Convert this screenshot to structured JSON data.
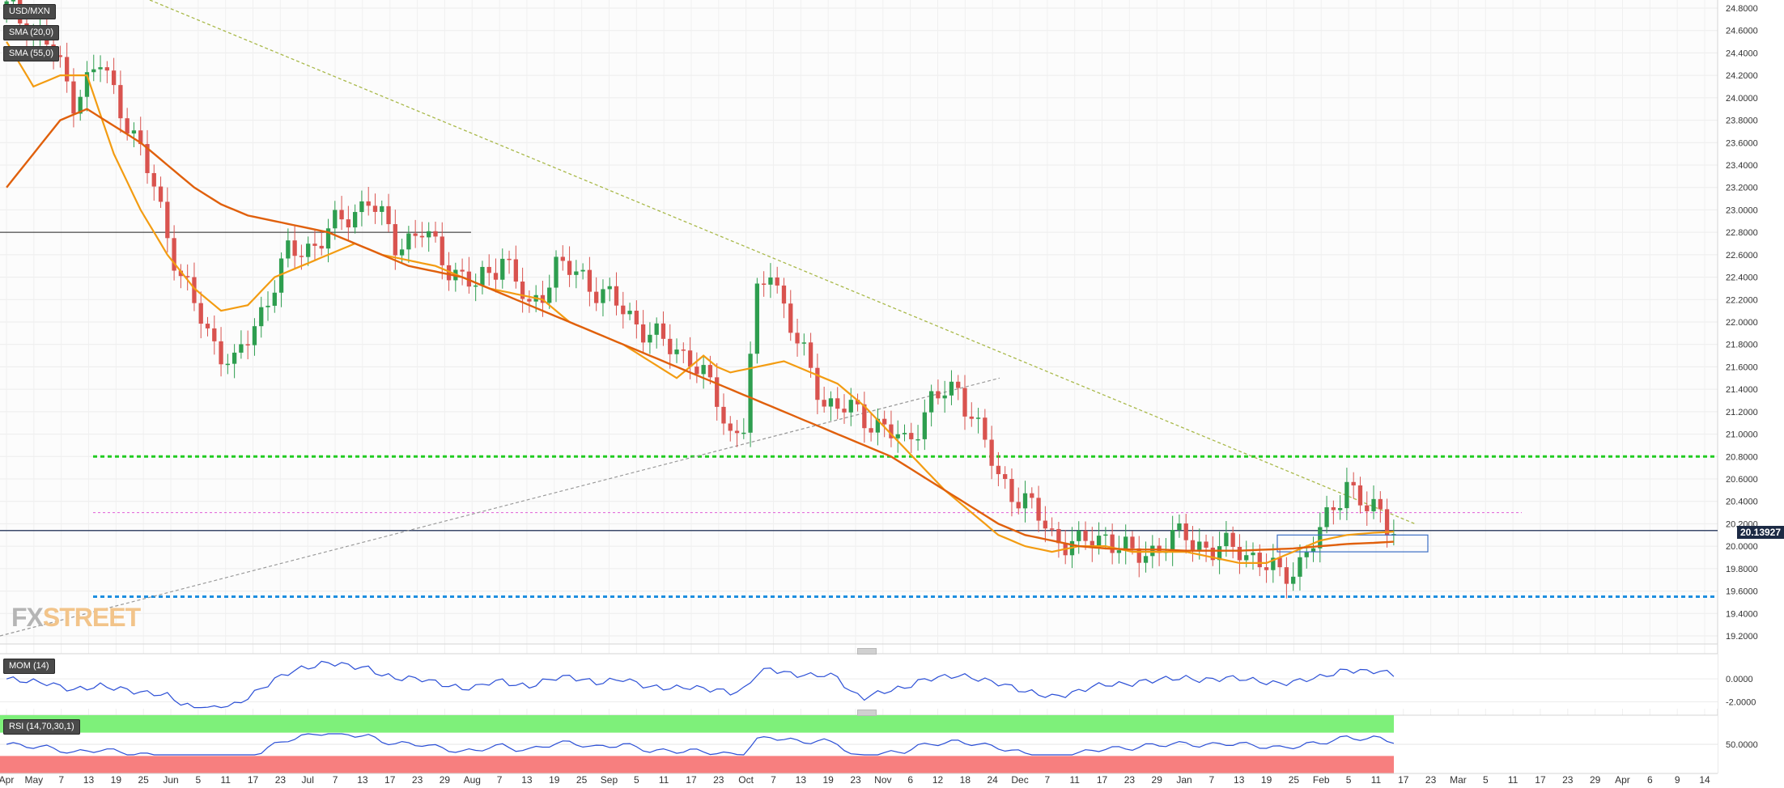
{
  "legend": {
    "symbol": "USD/MXN",
    "sma_fast": "SMA (20,0)",
    "sma_slow": "SMA (55,0)",
    "mom": "MOM (14)",
    "rsi": "RSI (14,70,30,1)"
  },
  "logo": {
    "part1": "FX",
    "part2": "STREET"
  },
  "last_price_label": "20.13927",
  "chart_data": [
    {
      "type": "candlestick",
      "title": "USD/MXN",
      "price_ticks": [
        "24.8000",
        "24.6000",
        "24.4000",
        "24.2000",
        "24.0000",
        "23.8000",
        "23.6000",
        "23.4000",
        "23.2000",
        "23.0000",
        "22.8000",
        "22.6000",
        "22.4000",
        "22.2000",
        "22.0000",
        "21.8000",
        "21.6000",
        "21.4000",
        "21.2000",
        "21.0000",
        "20.8000",
        "20.6000",
        "20.4000",
        "20.2000",
        "20.0000",
        "19.8000",
        "19.6000",
        "19.4000",
        "19.2000"
      ],
      "ylim": [
        19.2,
        24.8
      ],
      "date_labels": [
        "Apr",
        "May",
        "7",
        "13",
        "19",
        "25",
        "Jun",
        "5",
        "11",
        "17",
        "23",
        "Jul",
        "7",
        "13",
        "17",
        "23",
        "29",
        "Aug",
        "7",
        "13",
        "19",
        "25",
        "Sep",
        "5",
        "11",
        "17",
        "23",
        "Oct",
        "7",
        "13",
        "19",
        "23",
        "Nov",
        "6",
        "12",
        "18",
        "24",
        "Dec",
        "7",
        "11",
        "17",
        "23",
        "29",
        "Jan",
        "7",
        "13",
        "19",
        "25",
        "Feb",
        "5",
        "11",
        "17",
        "23",
        "Mar",
        "5",
        "11",
        "17",
        "23",
        "29",
        "Apr",
        "6",
        "9",
        "14"
      ],
      "price_path": [
        [
          0,
          24.8
        ],
        [
          6,
          24.5
        ],
        [
          10,
          24.0
        ],
        [
          14,
          24.3
        ],
        [
          18,
          23.8
        ],
        [
          22,
          23.2
        ],
        [
          26,
          22.4
        ],
        [
          30,
          21.9
        ],
        [
          34,
          21.6
        ],
        [
          38,
          22.1
        ],
        [
          42,
          22.6
        ],
        [
          46,
          22.7
        ],
        [
          50,
          22.9
        ],
        [
          54,
          23.1
        ],
        [
          58,
          22.7
        ],
        [
          62,
          22.8
        ],
        [
          66,
          22.5
        ],
        [
          70,
          22.3
        ],
        [
          74,
          22.6
        ],
        [
          78,
          22.1
        ],
        [
          82,
          22.5
        ],
        [
          86,
          22.4
        ],
        [
          90,
          22.2
        ],
        [
          94,
          22.0
        ],
        [
          98,
          21.8
        ],
        [
          102,
          21.7
        ],
        [
          106,
          21.3
        ],
        [
          108,
          21.0
        ],
        [
          110,
          21.1
        ],
        [
          112,
          22.2
        ],
        [
          114,
          22.5
        ],
        [
          118,
          21.8
        ],
        [
          122,
          21.3
        ],
        [
          126,
          21.2
        ],
        [
          130,
          21.1
        ],
        [
          134,
          20.9
        ],
        [
          138,
          21.3
        ],
        [
          142,
          21.4
        ],
        [
          144,
          21.2
        ],
        [
          148,
          20.6
        ],
        [
          152,
          20.4
        ],
        [
          156,
          20.1
        ],
        [
          160,
          20.0
        ],
        [
          164,
          20.1
        ],
        [
          168,
          19.9
        ],
        [
          172,
          20.0
        ],
        [
          176,
          20.1
        ],
        [
          180,
          19.95
        ],
        [
          184,
          20.0
        ],
        [
          188,
          19.8
        ],
        [
          190,
          19.75
        ],
        [
          193,
          19.85
        ],
        [
          196,
          20.1
        ],
        [
          198,
          20.4
        ],
        [
          200,
          20.55
        ],
        [
          203,
          20.3
        ],
        [
          205,
          20.35
        ],
        [
          207,
          20.14
        ]
      ],
      "sma_fast_path": [
        [
          0,
          24.5
        ],
        [
          4,
          24.1
        ],
        [
          8,
          24.2
        ],
        [
          12,
          24.2
        ],
        [
          16,
          23.5
        ],
        [
          20,
          23.0
        ],
        [
          24,
          22.6
        ],
        [
          28,
          22.3
        ],
        [
          32,
          22.1
        ],
        [
          36,
          22.15
        ],
        [
          40,
          22.4
        ],
        [
          44,
          22.5
        ],
        [
          48,
          22.6
        ],
        [
          52,
          22.7
        ],
        [
          56,
          22.6
        ],
        [
          60,
          22.55
        ],
        [
          64,
          22.5
        ],
        [
          68,
          22.4
        ],
        [
          72,
          22.3
        ],
        [
          76,
          22.25
        ],
        [
          80,
          22.2
        ],
        [
          84,
          22.0
        ],
        [
          88,
          21.9
        ],
        [
          92,
          21.8
        ],
        [
          96,
          21.65
        ],
        [
          100,
          21.5
        ],
        [
          104,
          21.7
        ],
        [
          106,
          21.6
        ],
        [
          108,
          21.55
        ],
        [
          112,
          21.6
        ],
        [
          116,
          21.65
        ],
        [
          120,
          21.55
        ],
        [
          124,
          21.45
        ],
        [
          128,
          21.25
        ],
        [
          132,
          21.0
        ],
        [
          136,
          20.75
        ],
        [
          140,
          20.5
        ],
        [
          144,
          20.3
        ],
        [
          148,
          20.1
        ],
        [
          152,
          20.0
        ],
        [
          156,
          19.95
        ],
        [
          160,
          20.0
        ],
        [
          164,
          20.0
        ],
        [
          168,
          19.95
        ],
        [
          172,
          19.95
        ],
        [
          176,
          19.95
        ],
        [
          180,
          19.9
        ],
        [
          184,
          19.85
        ],
        [
          188,
          19.85
        ],
        [
          192,
          19.95
        ],
        [
          196,
          20.05
        ],
        [
          200,
          20.1
        ],
        [
          204,
          20.12
        ],
        [
          207,
          20.13
        ]
      ],
      "sma_slow_path": [
        [
          0,
          23.2
        ],
        [
          4,
          23.5
        ],
        [
          8,
          23.8
        ],
        [
          12,
          23.9
        ],
        [
          16,
          23.75
        ],
        [
          20,
          23.6
        ],
        [
          24,
          23.4
        ],
        [
          28,
          23.2
        ],
        [
          32,
          23.05
        ],
        [
          36,
          22.95
        ],
        [
          40,
          22.9
        ],
        [
          44,
          22.85
        ],
        [
          48,
          22.8
        ],
        [
          52,
          22.7
        ],
        [
          56,
          22.6
        ],
        [
          60,
          22.5
        ],
        [
          64,
          22.45
        ],
        [
          68,
          22.4
        ],
        [
          72,
          22.3
        ],
        [
          76,
          22.2
        ],
        [
          80,
          22.1
        ],
        [
          84,
          22.0
        ],
        [
          88,
          21.9
        ],
        [
          92,
          21.8
        ],
        [
          96,
          21.7
        ],
        [
          100,
          21.6
        ],
        [
          104,
          21.5
        ],
        [
          108,
          21.4
        ],
        [
          112,
          21.3
        ],
        [
          116,
          21.2
        ],
        [
          120,
          21.1
        ],
        [
          124,
          21.0
        ],
        [
          128,
          20.9
        ],
        [
          132,
          20.8
        ],
        [
          136,
          20.65
        ],
        [
          140,
          20.5
        ],
        [
          144,
          20.35
        ],
        [
          148,
          20.2
        ],
        [
          152,
          20.1
        ],
        [
          156,
          20.05
        ],
        [
          160,
          20.0
        ],
        [
          164,
          19.98
        ],
        [
          168,
          19.97
        ],
        [
          172,
          19.97
        ],
        [
          176,
          19.96
        ],
        [
          180,
          19.96
        ],
        [
          184,
          19.96
        ],
        [
          188,
          19.97
        ],
        [
          192,
          19.98
        ],
        [
          196,
          20.0
        ],
        [
          200,
          20.02
        ],
        [
          204,
          20.03
        ],
        [
          207,
          20.04
        ]
      ],
      "levels": [
        {
          "name": "resistance-green",
          "value": 20.8,
          "color": "#22cc22",
          "style": "dashed"
        },
        {
          "name": "resistance-magenta",
          "value": 20.3,
          "color": "#e05fd8",
          "style": "dotted"
        },
        {
          "name": "support-blue",
          "value": 19.55,
          "color": "#1e8fe0",
          "style": "dashed"
        },
        {
          "name": "current-price",
          "value": 20.14,
          "color": "#3b4a6b",
          "style": "solid"
        },
        {
          "name": "old-resistance",
          "value": 22.8,
          "color": "#222222",
          "style": "solid"
        }
      ],
      "colors": {
        "up": "#2e9e4f",
        "down": "#d9534f",
        "sma_fast": "#f39c12",
        "sma_slow": "#e0600c",
        "trendline": "#a9b94a"
      }
    },
    {
      "type": "line",
      "title": "MOM (14)",
      "ticks": [
        "0.0000",
        "-2.0000"
      ],
      "ylim": [
        -2.6,
        2.2
      ],
      "grid": true
    },
    {
      "type": "line",
      "title": "RSI (14,70,30,1)",
      "ticks": [
        "50.0000"
      ],
      "ylim": [
        0,
        100
      ],
      "grid": true
    }
  ]
}
